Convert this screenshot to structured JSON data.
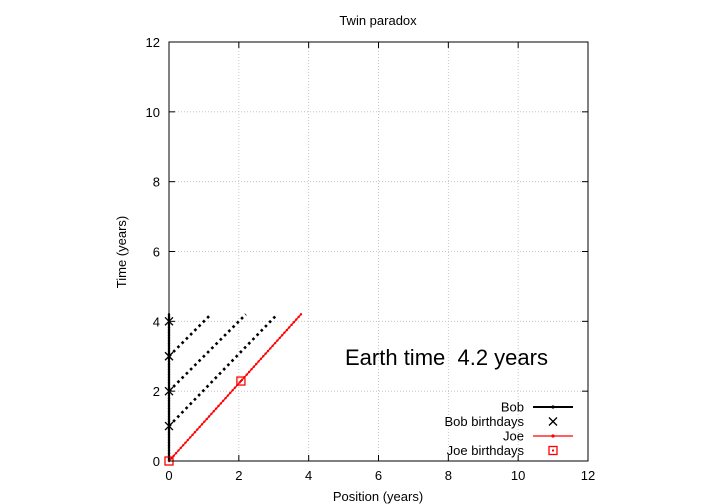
{
  "chart_data": {
    "type": "line",
    "title": "Twin paradox",
    "xlabel": "Position (years)",
    "ylabel": "Time (years)",
    "xlim": [
      0,
      12
    ],
    "ylim": [
      0,
      12
    ],
    "xticks": [
      "0",
      "2",
      "4",
      "6",
      "8",
      "10",
      "12"
    ],
    "yticks": [
      "0",
      "2",
      "4",
      "6",
      "8",
      "10",
      "12"
    ],
    "grid": true,
    "legend_position": "bottom-right",
    "annotation": "Earth time  4.2 years",
    "colors": {
      "bob": "#000000",
      "joe": "#ff0000",
      "grid": "#bbbbbb"
    },
    "series": [
      {
        "name": "Bob",
        "style": "line-dots",
        "color": "#000000",
        "x": [
          0,
          0
        ],
        "y": [
          0,
          4.2
        ]
      },
      {
        "name": "Bob birthdays",
        "style": "x-marker",
        "color": "#000000",
        "x": [
          0,
          0,
          0,
          0
        ],
        "y": [
          1,
          2,
          3,
          4
        ]
      },
      {
        "name": "Joe",
        "style": "line-dots",
        "color": "#ff0000",
        "x": [
          0,
          3.78
        ],
        "y": [
          0,
          4.2
        ]
      },
      {
        "name": "Joe birthdays",
        "style": "square-marker",
        "color": "#ff0000",
        "x": [
          0,
          2.06
        ],
        "y": [
          0,
          2.29
        ]
      }
    ],
    "light_signals": [
      {
        "x": [
          0,
          1.2
        ],
        "y": [
          3,
          4.2
        ]
      },
      {
        "x": [
          0,
          2.2
        ],
        "y": [
          2,
          4.2
        ]
      },
      {
        "x": [
          0,
          3.1
        ],
        "y": [
          1,
          4.2
        ]
      }
    ]
  }
}
